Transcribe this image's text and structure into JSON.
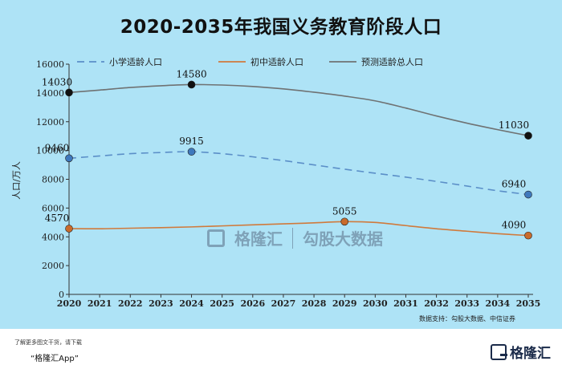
{
  "title": "2020-2035年我国义务教育阶段人口",
  "source_note": "数据支持：勾股大数据、中信证券",
  "promo": {
    "line1": "了解更多图文干货，请下载",
    "line2": "“格隆汇App”"
  },
  "brand": {
    "name": "格隆汇"
  },
  "watermark": {
    "brand": "格隆汇",
    "site": "勾股大数据"
  },
  "colors": {
    "background": "#aee3f6",
    "primary": "#5b8fc8",
    "junior": "#d07a3c",
    "total": "#6f7273"
  },
  "chart_data": {
    "type": "line",
    "title": "2020-2035年我国义务教育阶段人口",
    "xlabel": "",
    "ylabel": "人口/万人",
    "x": [
      2020,
      2021,
      2022,
      2023,
      2024,
      2025,
      2026,
      2027,
      2028,
      2029,
      2030,
      2031,
      2032,
      2033,
      2034,
      2035
    ],
    "xlim": [
      2020,
      2035
    ],
    "ylim": [
      0,
      16000
    ],
    "yticks": [
      0,
      2000,
      4000,
      6000,
      8000,
      10000,
      12000,
      14000,
      16000
    ],
    "grid": false,
    "legend": "top",
    "series": [
      {
        "name": "小学适龄人口",
        "style": "dashed",
        "color": "#5b8fc8",
        "values": [
          9460,
          9620,
          9780,
          9860,
          9915,
          9780,
          9560,
          9300,
          9000,
          8700,
          8420,
          8150,
          7850,
          7530,
          7200,
          6940
        ],
        "labeled": [
          {
            "x": 2020,
            "y": 9460
          },
          {
            "x": 2024,
            "y": 9915
          },
          {
            "x": 2035,
            "y": 6940
          }
        ]
      },
      {
        "name": "初中适龄人口",
        "style": "solid",
        "color": "#d07a3c",
        "values": [
          4570,
          4560,
          4600,
          4640,
          4690,
          4760,
          4830,
          4900,
          4970,
          5055,
          5000,
          4780,
          4560,
          4390,
          4220,
          4090
        ],
        "labeled": [
          {
            "x": 2020,
            "y": 4570
          },
          {
            "x": 2029,
            "y": 5055
          },
          {
            "x": 2035,
            "y": 4090
          }
        ]
      },
      {
        "name": "预测适龄总人口",
        "style": "solid",
        "color": "#6f7273",
        "values": [
          14030,
          14200,
          14380,
          14500,
          14580,
          14550,
          14450,
          14280,
          14050,
          13780,
          13450,
          12950,
          12400,
          11900,
          11450,
          11030
        ],
        "labeled": [
          {
            "x": 2020,
            "y": 14030
          },
          {
            "x": 2024,
            "y": 14580
          },
          {
            "x": 2035,
            "y": 11030
          }
        ]
      }
    ]
  }
}
